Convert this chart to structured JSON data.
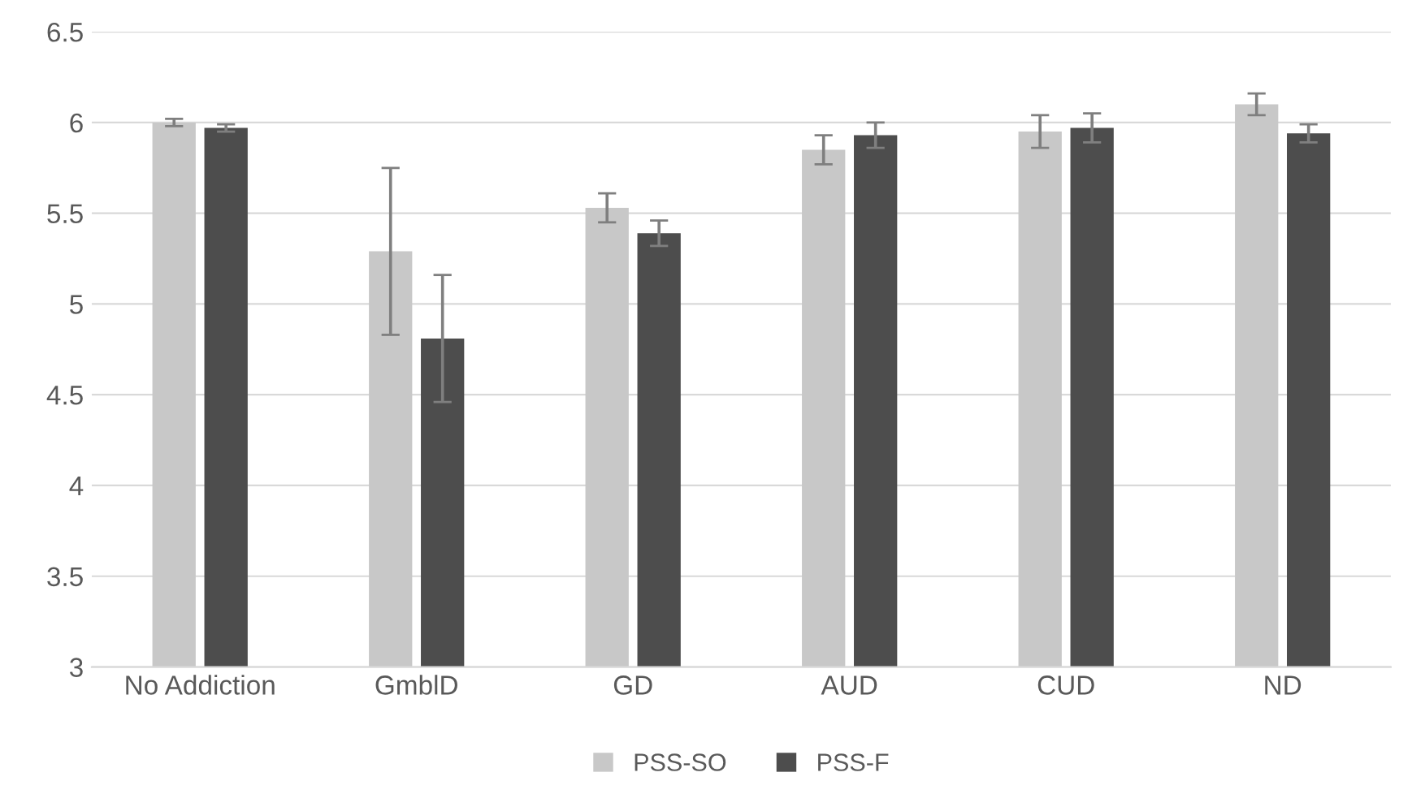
{
  "chart_data": {
    "type": "bar",
    "categories": [
      "No Addiction",
      "GmblD",
      "GD",
      "AUD",
      "CUD",
      "ND"
    ],
    "series": [
      {
        "name": "PSS-SO",
        "color": "#c8c8c8",
        "values": [
          6.0,
          5.29,
          5.53,
          5.85,
          5.95,
          6.1
        ],
        "errors": [
          0.02,
          0.46,
          0.08,
          0.08,
          0.09,
          0.06
        ]
      },
      {
        "name": "PSS-F",
        "color": "#4d4d4d",
        "values": [
          5.97,
          4.81,
          5.39,
          5.93,
          5.97,
          5.94
        ],
        "errors": [
          0.02,
          0.35,
          0.07,
          0.07,
          0.08,
          0.05
        ]
      }
    ],
    "ylim": [
      3,
      6.5
    ],
    "yticks": [
      3,
      3.5,
      4,
      4.5,
      5,
      5.5,
      6,
      6.5
    ],
    "grid": "y",
    "legend": "bottom"
  }
}
